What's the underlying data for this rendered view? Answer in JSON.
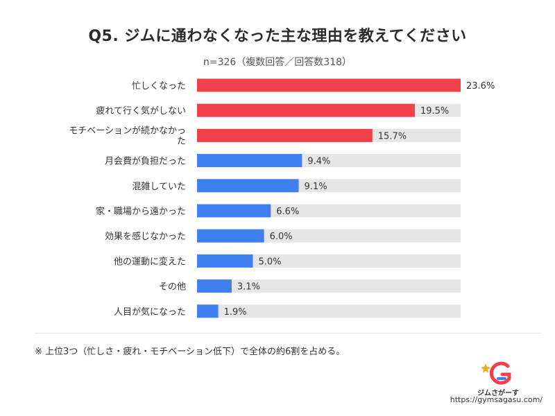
{
  "header": {
    "title": "Q5. ジムに通わなくなった主な理由を教えてください",
    "subtitle": "n=326（複数回答／回答数318）"
  },
  "colors": {
    "top3": "#f0414b",
    "other": "#3f7ff0",
    "track": "#e6e6e6"
  },
  "chart_data": {
    "type": "bar",
    "orientation": "horizontal",
    "categories": [
      "忙しくなった",
      "疲れて行く気がしない",
      "モチベーションが続かなかった",
      "月会費が負担だった",
      "混雑していた",
      "家・職場から遠かった",
      "効果を感じなかった",
      "他の運動に変えた",
      "その他",
      "人目が気になった"
    ],
    "values": [
      23.6,
      19.5,
      15.7,
      9.4,
      9.1,
      6.6,
      6.0,
      5.0,
      3.1,
      1.9
    ],
    "value_labels": [
      "23.6%",
      "19.5%",
      "15.7%",
      "9.4%",
      "9.1%",
      "6.6%",
      "6.0%",
      "5.0%",
      "3.1%",
      "1.9%"
    ],
    "highlight_top": 3,
    "xlim": [
      0,
      23.6
    ],
    "grid": false,
    "legend": "none"
  },
  "footnote": "※ 上位3つ（忙しさ・疲れ・モチベーション低下）で全体の約6割を占める。",
  "brand": {
    "name": "ジムさがーす",
    "url": "https://gymsagasu.com/"
  }
}
